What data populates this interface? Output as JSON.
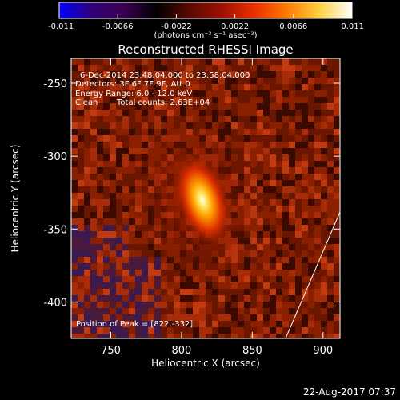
{
  "colorbar": {
    "min": -0.011,
    "max": 0.011,
    "ticks": [
      "-0.011",
      "-0.0066",
      "-0.0022",
      "0.0022",
      "0.0066",
      "0.011"
    ],
    "tick_values": [
      -0.011,
      -0.0066,
      -0.0022,
      0.0022,
      0.0066,
      0.011
    ],
    "unit_text": "(photons cm⁻² s⁻¹ asec⁻²)",
    "colormap": [
      "#0000ff",
      "#30007a",
      "#3a0050",
      "#000000",
      "#5a0a00",
      "#a01000",
      "#e83000",
      "#ff7a00",
      "#ffd040",
      "#ffffff"
    ]
  },
  "image": {
    "title": "Reconstructed RHESSI Image",
    "time_range": "6-Dec-2014 23:48:04.000 to 23:58:04.000",
    "detectors": "Detectors: 3F 6F 7F 9F, Att 0",
    "energy_range": "Energy Range: 6.0 - 12.0 keV",
    "method": "Clean",
    "total_counts": "Total counts: 2.63E+04",
    "peak_text": "Position of Peak = [822,-332]",
    "peak": {
      "x": 822,
      "y": -332
    }
  },
  "axes": {
    "x_label": "Heliocentric X (arcsec)",
    "y_label": "Heliocentric Y (arcsec)",
    "x_ticks": [
      "750",
      "800",
      "850",
      "900"
    ],
    "x_tick_values": [
      750,
      800,
      850,
      900
    ],
    "y_ticks": [
      "-250",
      "-300",
      "-350",
      "-400"
    ],
    "y_tick_values": [
      -250,
      -300,
      -350,
      -400
    ],
    "xlim": [
      722,
      912
    ],
    "ylim": [
      -425,
      -233
    ]
  },
  "footer": {
    "timestamp": "22-Aug-2017 07:37"
  }
}
